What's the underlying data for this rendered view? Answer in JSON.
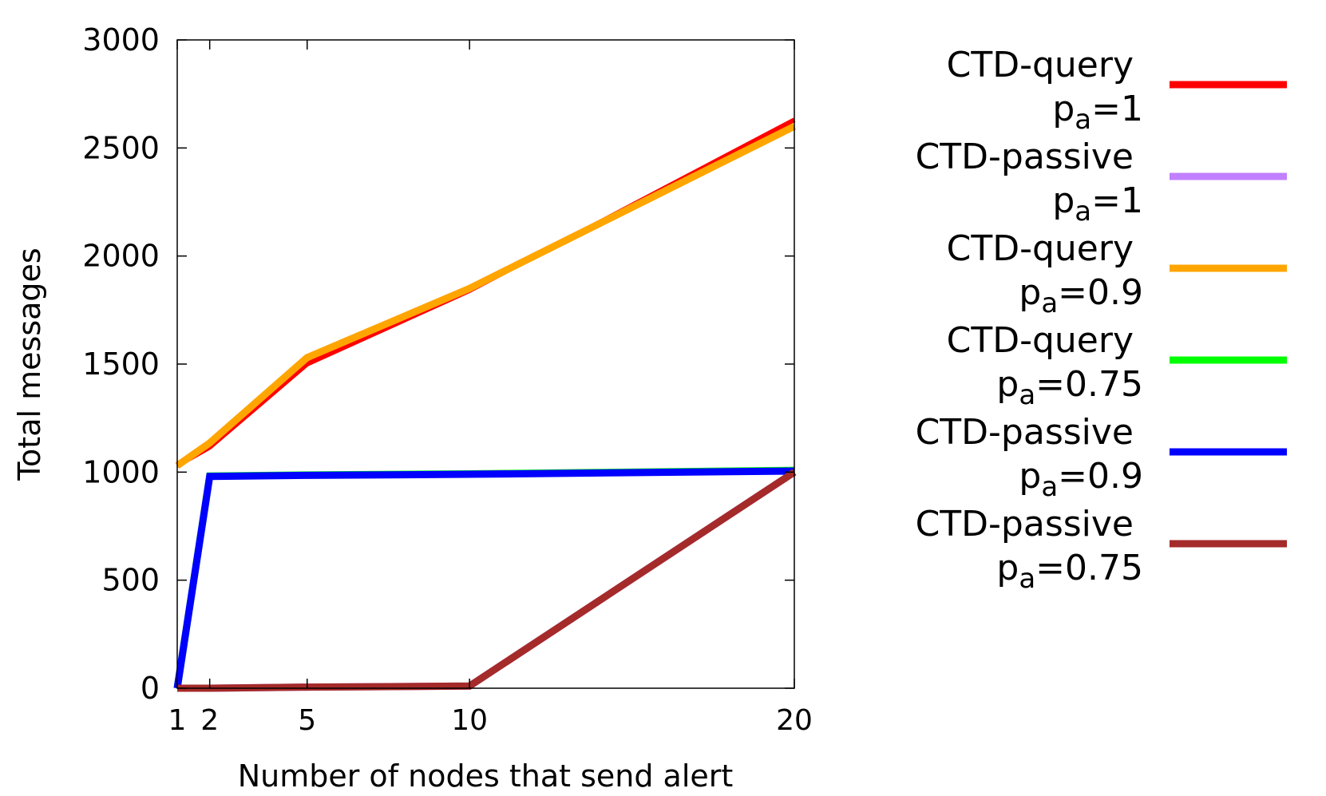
{
  "chart_data": {
    "type": "line",
    "title": "",
    "xlabel": "Number of nodes that send alert",
    "ylabel": "Total messages",
    "x": [
      1,
      2,
      5,
      10,
      20
    ],
    "xticks": [
      "1",
      "2",
      "5",
      "10",
      "20"
    ],
    "xlim": [
      1,
      20
    ],
    "ylim": [
      0,
      3000
    ],
    "yticks": [
      "0",
      "500",
      "1000",
      "1500",
      "2000",
      "2500",
      "3000"
    ],
    "grid": false,
    "legend_position": "right",
    "series": [
      {
        "name": "CTD-query",
        "param": "p",
        "sub": "a",
        "value": "=1",
        "color": "#ff0000",
        "values": [
          1030,
          1115,
          1500,
          1840,
          2630
        ]
      },
      {
        "name": "CTD-passive",
        "param": "p",
        "sub": "a",
        "value": "=1",
        "color": "#c080ff",
        "values": [
          0,
          0,
          5,
          10,
          1000
        ]
      },
      {
        "name": "CTD-query",
        "param": "p",
        "sub": "a",
        "value": "=0.9",
        "color": "#ffa500",
        "values": [
          1030,
          1135,
          1530,
          1850,
          2600
        ]
      },
      {
        "name": "CTD-query",
        "param": "p",
        "sub": "a",
        "value": "=0.75",
        "color": "#00ff00",
        "values": [
          0,
          982,
          987,
          992,
          1008
        ]
      },
      {
        "name": "CTD-passive",
        "param": "p",
        "sub": "a",
        "value": "=0.9",
        "color": "#0000ff",
        "values": [
          0,
          980,
          985,
          990,
          1005
        ]
      },
      {
        "name": "CTD-passive",
        "param": "p",
        "sub": "a",
        "value": "=0.75",
        "color": "#a52a2a",
        "values": [
          0,
          0,
          5,
          10,
          1000
        ]
      }
    ]
  }
}
